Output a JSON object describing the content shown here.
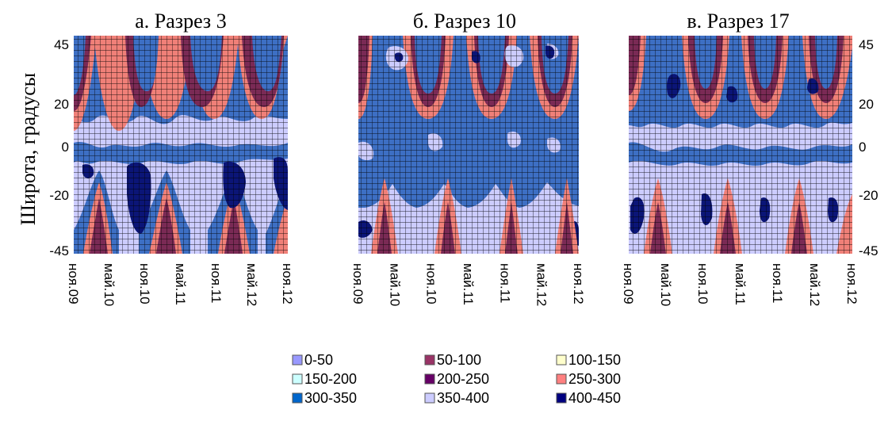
{
  "chart_data": {
    "type": "heatmap",
    "ylabel": "Широта, градусы",
    "ylim": [
      -45,
      45
    ],
    "y_ticks": [
      "45",
      "20",
      "0",
      "-20",
      "-45"
    ],
    "y_tick_values": [
      45,
      20,
      0,
      -20,
      -45
    ],
    "x_ticks": [
      "ноя.09",
      "май.10",
      "ноя.10",
      "май.11",
      "ноя.11",
      "май.12",
      "ноя.12"
    ],
    "panels": [
      {
        "title": "а. Разрез 3"
      },
      {
        "title": "б. Разрез 10"
      },
      {
        "title": "в. Разрез 17"
      }
    ],
    "legend": [
      {
        "label": "0-50",
        "color": "#9999ff"
      },
      {
        "label": "50-100",
        "color": "#993366"
      },
      {
        "label": "100-150",
        "color": "#ffffcc"
      },
      {
        "label": "150-200",
        "color": "#ccffff"
      },
      {
        "label": "200-250",
        "color": "#660066"
      },
      {
        "label": "250-300",
        "color": "#ff8080"
      },
      {
        "label": "300-350",
        "color": "#0066cc"
      },
      {
        "label": "350-400",
        "color": "#ccccff"
      },
      {
        "label": "400-450",
        "color": "#000080"
      }
    ],
    "grid": true
  }
}
